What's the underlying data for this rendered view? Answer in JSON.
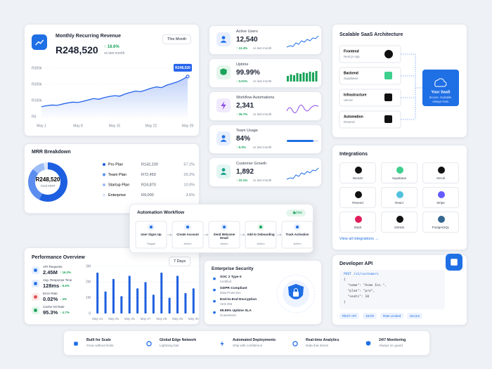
{
  "mrr": {
    "title": "Monthly Recurring Revenue",
    "period": "This Month",
    "value": "R248,520",
    "change": "↑ 18.6%",
    "change_note": "vs last month",
    "chart": {
      "type": "line",
      "categories": [
        "May 1",
        null,
        null,
        null,
        null,
        null,
        null,
        "May 8",
        null,
        null,
        null,
        null,
        null,
        null,
        "May 15",
        null,
        null,
        null,
        null,
        null,
        null,
        "May 22",
        null,
        null,
        null,
        null,
        null,
        null,
        "May 29"
      ],
      "values": [
        62,
        68,
        72,
        70,
        78,
        85,
        90,
        88,
        95,
        104,
        112,
        108,
        118,
        125,
        130,
        127,
        140,
        150,
        158,
        155,
        165,
        176,
        184,
        180,
        195,
        205,
        215,
        230,
        248.52
      ],
      "color": "#2563eb",
      "ylim": [
        0,
        300
      ],
      "yticks": [
        {
          "value": 300,
          "label": "R300k"
        },
        {
          "value": 200,
          "label": "R200k"
        },
        {
          "value": 100,
          "label": "R100k"
        },
        {
          "value": 0,
          "label": "R0"
        }
      ],
      "grid": true
    }
  },
  "breakdown": {
    "title": "MRR Breakdown",
    "type": "donut",
    "total": "R248,520",
    "total_label": "Total MRR",
    "items": [
      {
        "name": "Pro Plan",
        "amount": "R142,200",
        "value": 57.2,
        "value_label": "57.2%",
        "color": "#1d5fe0"
      },
      {
        "name": "Team Plan",
        "amount": "R72,450",
        "value": 29.2,
        "value_label": "29.2%",
        "color": "#5b8def"
      },
      {
        "name": "Startup Plan",
        "amount": "R24,870",
        "value": 10.0,
        "value_label": "10.0%",
        "color": "#9dbdf6"
      },
      {
        "name": "Enterprise",
        "amount": "R9,000",
        "value": 3.6,
        "value_label": "3.6%",
        "color": "#dbe6fb"
      }
    ]
  },
  "metrics": [
    {
      "title": "Active Users",
      "value": "12,540",
      "change": "↑ 12.4%",
      "note": "vs last month"
    },
    {
      "title": "Uptime",
      "value": "99.99%",
      "change": "↑ 0.01%",
      "note": "vs last month"
    },
    {
      "title": "Workflow Automations",
      "value": "2,341",
      "change": "↑ 26.7%",
      "note": "vs last month"
    },
    {
      "title": "Team Usage",
      "value": "84%",
      "change": "↑ 8.3%",
      "note": "vs last month"
    },
    {
      "title": "Customer Growth",
      "value": "1,892",
      "change": "↑ 22.1%",
      "note": "vs last month"
    }
  ],
  "architecture": {
    "title": "Scalable SaaS Architecture",
    "nodes": [
      {
        "label": "Frontend",
        "sub": "Next.js App"
      },
      {
        "label": "Backend",
        "sub": "Supabase"
      },
      {
        "label": "Infrastructure",
        "sub": "Vercel"
      },
      {
        "label": "Automation",
        "sub": "Resend"
      }
    ],
    "core": {
      "label": "Your SaaS",
      "sub": "Secure. Scalable. Always Fast."
    }
  },
  "integrations": {
    "title": "Integrations",
    "items": [
      "NextJS",
      "Supabase",
      "Vercel",
      "Resend",
      "React",
      "Stripe",
      "Slack",
      "GitHub",
      "PostgreSQL"
    ],
    "link": "View all integrations →"
  },
  "workflow": {
    "title": "Automation Workflow",
    "status": "Active",
    "steps": [
      {
        "label": "User Signs Up",
        "kind": "Trigger"
      },
      {
        "label": "Create Account",
        "kind": "Action"
      },
      {
        "label": "Send Welcome Email",
        "kind": "Action"
      },
      {
        "label": "Add to Onboarding",
        "kind": "Action"
      },
      {
        "label": "Track Activation",
        "kind": "Action"
      }
    ]
  },
  "performance": {
    "title": "Performance Overview",
    "period": "7 Days",
    "metrics": [
      {
        "name": "API Requests",
        "value": "2.45M",
        "change": "↑ 16.2%"
      },
      {
        "name": "Avg. Response Time",
        "value": "128ms",
        "change": "↓ 8.4%"
      },
      {
        "name": "Error Rate",
        "value": "0.02%",
        "change": "↓ 4%"
      },
      {
        "name": "Cache Hit Rate",
        "value": "95.3%",
        "change": "↑ 4.7%"
      }
    ],
    "chart": {
      "type": "bar",
      "categories": [
        "May 24",
        null,
        "May 25",
        null,
        "May 26",
        null,
        "May 27",
        null,
        "May 28",
        null,
        "May 29",
        null,
        "May 30"
      ],
      "values": [
        2.6,
        1.4,
        2.2,
        1.1,
        2.4,
        1.6,
        2.0,
        1.2,
        2.6,
        1.0,
        2.4,
        1.3,
        1.6
      ],
      "color": "#1d5fe0",
      "ylim": [
        0,
        3
      ],
      "yticks": [
        {
          "value": 3,
          "label": "3M"
        },
        {
          "value": 2,
          "label": "2M"
        },
        {
          "value": 1,
          "label": "1M"
        },
        0
      ]
    }
  },
  "security": {
    "title": "Enterprise Security",
    "items": [
      {
        "label": "SOC 2 Type II",
        "sub": "Certified"
      },
      {
        "label": "GDPR Compliant",
        "sub": "Data Protection"
      },
      {
        "label": "End-to-End Encryption",
        "sub": "AES-256"
      },
      {
        "label": "99.99% Uptime SLA",
        "sub": "Guaranteed"
      }
    ]
  },
  "api": {
    "title": "Developer API",
    "code": [
      "POST /v1/customers",
      "{",
      "  \"name\": \"Acme Inc.\",",
      "  \"plan\": \"pro\",",
      "  \"seats\": 10",
      "}"
    ],
    "tags": [
      "REST API",
      "JSON",
      "Rate Limited",
      "Secure"
    ]
  },
  "features": [
    {
      "label": "Built for Scale",
      "sub": "Grow without limits"
    },
    {
      "label": "Global Edge Network",
      "sub": "Lightning fast"
    },
    {
      "label": "Automated Deployments",
      "sub": "Ship with confidence"
    },
    {
      "label": "Real-time Analytics",
      "sub": "Data that drives"
    },
    {
      "label": "24/7 Monitoring",
      "sub": "Always on guard"
    }
  ]
}
